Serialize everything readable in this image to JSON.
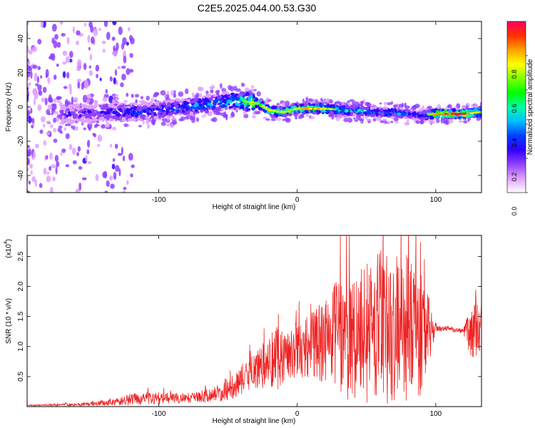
{
  "title": "C2E5.2025.044.00.53.G30",
  "chart_data": [
    {
      "type": "heatmap",
      "xlabel": "Height of straight line (km)",
      "ylabel": "Frequency (Hz)",
      "xlim": [
        -195,
        133
      ],
      "ylim": [
        -50,
        50
      ],
      "xticks": [
        -100,
        0,
        100
      ],
      "xtick_labels": [
        "-100",
        "0",
        "100"
      ],
      "yticks": [
        -40,
        -20,
        0,
        20,
        40
      ],
      "ytick_labels": [
        "-40",
        "-20",
        "0",
        "20",
        "40"
      ],
      "grid": false,
      "ridge": {
        "x": [
          -180,
          -160,
          -140,
          -120,
          -100,
          -80,
          -60,
          -45,
          -35,
          -28,
          -20,
          -10,
          0,
          10,
          20,
          40,
          60,
          80,
          90,
          100,
          110,
          120,
          133
        ],
        "freq": [
          -5,
          -4,
          -3,
          -3,
          -2,
          0,
          2,
          4,
          3,
          2,
          -2,
          -3,
          -1,
          -1,
          -1,
          -2,
          -3,
          -4,
          -5,
          -4,
          -4,
          -4,
          -3
        ],
        "amplitude": [
          0.2,
          0.25,
          0.3,
          0.35,
          0.35,
          0.4,
          0.45,
          0.55,
          0.8,
          0.7,
          0.8,
          0.75,
          0.8,
          0.9,
          0.8,
          0.5,
          0.45,
          0.4,
          0.35,
          0.95,
          1.0,
          1.0,
          0.7
        ]
      },
      "colorbar": {
        "label": "Normalized spectral amplitude",
        "range": [
          0,
          1
        ],
        "ticks": [
          0.0,
          0.2,
          0.4,
          0.6,
          0.8
        ],
        "tick_labels": [
          "0.0",
          "0.2",
          "0.4",
          "0.6",
          "0.8"
        ],
        "colors": [
          "#ffffff",
          "#e0a0ff",
          "#9040ff",
          "#3000ff",
          "#0040ff",
          "#00c0ff",
          "#00ffa0",
          "#00ff00",
          "#80ff00",
          "#ffff00",
          "#ffa000",
          "#ff3000",
          "#ff0060"
        ]
      }
    },
    {
      "type": "line",
      "xlabel": "Height of straight line (km)",
      "ylabel": "SNR (10 * v/v)",
      "y_multiplier_label": "(x10",
      "y_multiplier_exp": "4",
      "xlim": [
        -195,
        133
      ],
      "ylim": [
        0,
        2.85
      ],
      "xticks": [
        -100,
        0,
        100
      ],
      "xtick_labels": [
        "-100",
        "0",
        "100"
      ],
      "yticks": [
        0.5,
        1.0,
        1.5,
        2.0,
        2.5
      ],
      "ytick_labels": [
        "0.5",
        "1.0",
        "1.5",
        "2.0",
        "2.5"
      ],
      "grid": false,
      "series": [
        {
          "color": "#ee2222",
          "envelope_x": [
            -195,
            -150,
            -130,
            -120,
            -110,
            -100,
            -80,
            -60,
            -50,
            -40,
            -30,
            -20,
            -15,
            -10,
            0,
            10,
            20,
            30,
            40,
            50,
            60,
            70,
            80,
            90,
            95,
            100,
            110,
            120,
            125,
            130,
            133
          ],
          "envelope_mid": [
            0.02,
            0.04,
            0.08,
            0.12,
            0.14,
            0.14,
            0.14,
            0.2,
            0.3,
            0.45,
            0.6,
            0.75,
            0.85,
            0.85,
            0.95,
            1.0,
            1.1,
            1.2,
            1.15,
            1.25,
            1.35,
            1.35,
            1.3,
            1.2,
            1.25,
            1.3,
            1.3,
            1.25,
            1.25,
            1.3,
            1.3
          ],
          "envelope_amp": [
            0.01,
            0.03,
            0.06,
            0.1,
            0.1,
            0.1,
            0.08,
            0.12,
            0.2,
            0.25,
            0.3,
            0.45,
            0.6,
            0.45,
            0.45,
            0.55,
            0.7,
            0.95,
            1.1,
            1.2,
            1.3,
            1.35,
            1.2,
            1.05,
            0.6,
            0.05,
            0.04,
            0.05,
            0.4,
            0.55,
            0.5
          ]
        }
      ]
    }
  ]
}
